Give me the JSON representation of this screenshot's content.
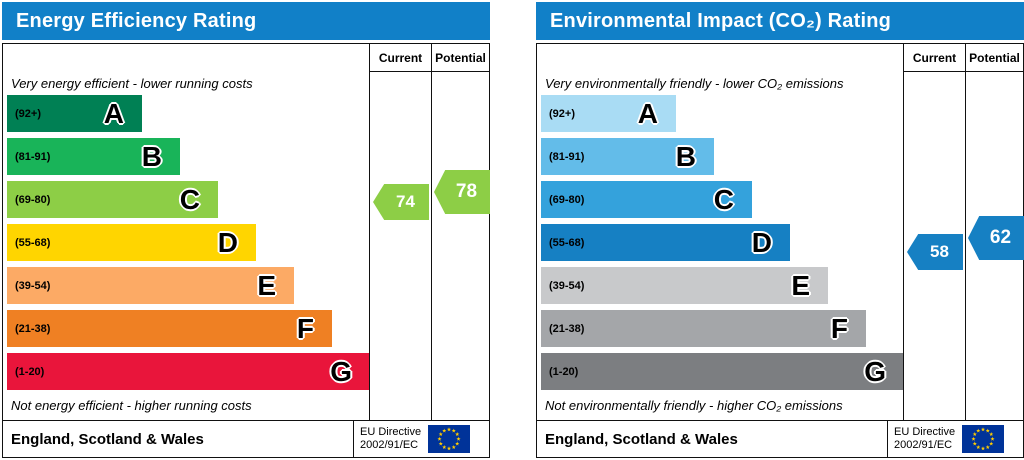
{
  "chart_data": [
    {
      "type": "bar",
      "title": "Energy Efficiency Rating",
      "column_headers": [
        "Current",
        "Potential"
      ],
      "top_note": "Very energy efficient - lower running costs",
      "bottom_note": "Not energy efficient - higher running costs",
      "bands": [
        {
          "range": "(92+)",
          "letter": "A",
          "color": "#008054"
        },
        {
          "range": "(81-91)",
          "letter": "B",
          "color": "#19b459"
        },
        {
          "range": "(69-80)",
          "letter": "C",
          "color": "#8dce46"
        },
        {
          "range": "(55-68)",
          "letter": "D",
          "color": "#ffd500"
        },
        {
          "range": "(39-54)",
          "letter": "E",
          "color": "#fcaa65"
        },
        {
          "range": "(21-38)",
          "letter": "F",
          "color": "#ef8023"
        },
        {
          "range": "(1-20)",
          "letter": "G",
          "color": "#e9153b"
        }
      ],
      "current": {
        "value": 74,
        "band": "C",
        "arrow_color": "#8dce46"
      },
      "potential": {
        "value": 78,
        "band": "C",
        "arrow_color": "#8dce46"
      },
      "footer": {
        "region": "England, Scotland & Wales",
        "directive_line1": "EU Directive",
        "directive_line2": "2002/91/EC"
      }
    },
    {
      "type": "bar",
      "title": "Environmental Impact (CO₂) Rating",
      "column_headers": [
        "Current",
        "Potential"
      ],
      "top_note": "Very environmentally friendly - lower CO₂ emissions",
      "bottom_note": "Not environmentally friendly - higher CO₂ emissions",
      "bands": [
        {
          "range": "(92+)",
          "letter": "A",
          "color": "#a9dcf4"
        },
        {
          "range": "(81-91)",
          "letter": "B",
          "color": "#63bce9"
        },
        {
          "range": "(69-80)",
          "letter": "C",
          "color": "#34a2dc"
        },
        {
          "range": "(55-68)",
          "letter": "D",
          "color": "#1680c3"
        },
        {
          "range": "(39-54)",
          "letter": "E",
          "color": "#c8c9cb"
        },
        {
          "range": "(21-38)",
          "letter": "F",
          "color": "#a4a6a9"
        },
        {
          "range": "(1-20)",
          "letter": "G",
          "color": "#7c7e81"
        }
      ],
      "current": {
        "value": 58,
        "band": "D",
        "arrow_color": "#1680c3"
      },
      "potential": {
        "value": 62,
        "band": "D",
        "arrow_color": "#1680c3"
      },
      "footer": {
        "region": "England, Scotland & Wales",
        "directive_line1": "EU Directive",
        "directive_line2": "2002/91/EC"
      }
    }
  ]
}
